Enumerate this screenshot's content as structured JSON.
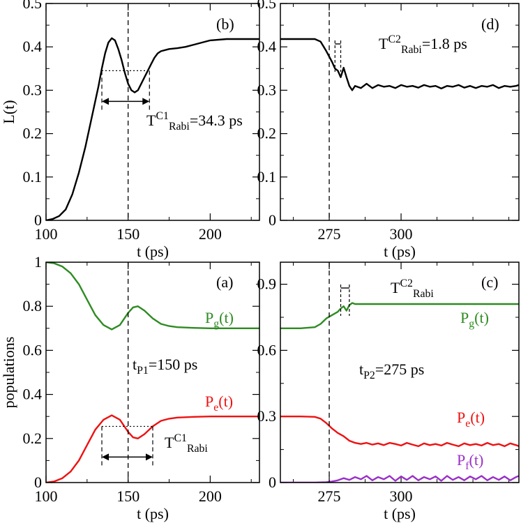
{
  "colors": {
    "black": "#000000",
    "green": "#2e8b22",
    "red": "#ee1111",
    "purple": "#9a2fc8"
  },
  "chart_data": [
    {
      "id": "b",
      "type": "line",
      "panel_label": "(b)",
      "xlabel": "t (ps)",
      "ylabel": "L(t)",
      "xlim": [
        100,
        230
      ],
      "ylim": [
        0,
        0.5
      ],
      "xticks": [
        100,
        150,
        200
      ],
      "xtick_labels": [
        "100",
        "150",
        "200"
      ],
      "yticks": [
        0,
        0.1,
        0.2,
        0.3,
        0.4,
        0.5
      ],
      "ytick_labels": [
        "0",
        "0.1",
        "0.2",
        "0.3",
        "0.4",
        "0.5"
      ],
      "series": [
        {
          "name": "L(t)",
          "color": "#000000",
          "x": [
            100,
            104,
            108,
            112,
            116,
            120,
            124,
            128,
            132,
            134,
            136,
            138,
            140,
            142,
            144,
            146,
            148,
            150,
            152,
            154,
            156,
            158,
            160,
            162,
            164,
            166,
            168,
            170,
            175,
            180,
            185,
            190,
            195,
            200,
            210,
            220,
            230
          ],
          "y": [
            0,
            0.003,
            0.01,
            0.025,
            0.06,
            0.11,
            0.17,
            0.24,
            0.31,
            0.35,
            0.385,
            0.41,
            0.42,
            0.415,
            0.395,
            0.37,
            0.34,
            0.315,
            0.3,
            0.295,
            0.3,
            0.315,
            0.33,
            0.345,
            0.36,
            0.375,
            0.385,
            0.39,
            0.395,
            0.397,
            0.4,
            0.405,
            0.41,
            0.415,
            0.418,
            0.418,
            0.418
          ]
        }
      ],
      "vline": 150,
      "annotation": {
        "text": "T",
        "sup": "C1",
        "sub": "Rabi",
        "value": "=34.3 ps",
        "x_start": 134,
        "x_end": 163,
        "level": 0.345
      }
    },
    {
      "id": "d",
      "type": "line",
      "panel_label": "(d)",
      "xlabel": "t (ps)",
      "ylabel": "",
      "xlim": [
        258,
        341
      ],
      "ylim": [
        0,
        0.5
      ],
      "xticks": [
        275,
        300
      ],
      "xtick_labels": [
        "275",
        "300"
      ],
      "yticks": [
        0,
        0.1,
        0.2,
        0.3,
        0.4,
        0.5
      ],
      "ytick_labels": [
        "0",
        "0.1",
        "0.2",
        "0.3",
        "0.4",
        "0.5"
      ],
      "series": [
        {
          "name": "L(t)",
          "color": "#000000",
          "x": [
            258,
            265,
            270,
            272,
            274,
            276,
            277,
            278,
            279,
            280,
            281,
            282,
            283,
            284,
            286,
            288,
            290,
            292,
            294,
            296,
            298,
            300,
            302,
            304,
            306,
            308,
            310,
            312,
            314,
            316,
            318,
            320,
            322,
            324,
            326,
            328,
            330,
            332,
            334,
            336,
            338,
            340,
            341
          ],
          "y": [
            0.418,
            0.418,
            0.418,
            0.412,
            0.39,
            0.365,
            0.35,
            0.345,
            0.33,
            0.352,
            0.33,
            0.31,
            0.3,
            0.31,
            0.305,
            0.315,
            0.305,
            0.312,
            0.308,
            0.31,
            0.305,
            0.312,
            0.308,
            0.31,
            0.306,
            0.312,
            0.308,
            0.31,
            0.304,
            0.31,
            0.308,
            0.312,
            0.306,
            0.31,
            0.305,
            0.31,
            0.308,
            0.312,
            0.305,
            0.31,
            0.308,
            0.31,
            0.312
          ]
        }
      ],
      "vline": 275,
      "annotation": {
        "text": "T",
        "sup": "C2",
        "sub": "Rabi",
        "value": "=1.8 ps",
        "x_start": 277,
        "x_end": 279
      }
    },
    {
      "id": "a",
      "type": "line",
      "panel_label": "(a)",
      "xlabel": "t (ps)",
      "ylabel": "populations",
      "xlim": [
        100,
        230
      ],
      "ylim": [
        0,
        1
      ],
      "xticks": [
        100,
        150,
        200
      ],
      "xtick_labels": [
        "100",
        "150",
        "200"
      ],
      "yticks": [
        0,
        0.2,
        0.4,
        0.6,
        0.8,
        1
      ],
      "ytick_labels": [
        "0",
        "0.2",
        "0.4",
        "0.6",
        "0.8",
        "1"
      ],
      "series": [
        {
          "name": "Pg(t)",
          "label_main": "P",
          "label_sub": "g",
          "label_tail": "(t)",
          "color": "#2e8b22",
          "x": [
            100,
            105,
            110,
            115,
            120,
            125,
            130,
            135,
            140,
            145,
            150,
            153,
            156,
            160,
            165,
            170,
            175,
            180,
            190,
            200,
            210,
            220,
            230
          ],
          "y": [
            1.0,
            0.995,
            0.98,
            0.95,
            0.9,
            0.83,
            0.76,
            0.715,
            0.695,
            0.715,
            0.77,
            0.795,
            0.8,
            0.78,
            0.745,
            0.72,
            0.71,
            0.705,
            0.702,
            0.7,
            0.7,
            0.7,
            0.7
          ]
        },
        {
          "name": "Pe(t)",
          "label_main": "P",
          "label_sub": "e",
          "label_tail": "(t)",
          "color": "#ee1111",
          "x": [
            100,
            105,
            110,
            115,
            120,
            125,
            130,
            135,
            140,
            145,
            150,
            153,
            156,
            160,
            165,
            170,
            175,
            180,
            190,
            200,
            210,
            220,
            230
          ],
          "y": [
            0.0,
            0.005,
            0.02,
            0.05,
            0.1,
            0.17,
            0.24,
            0.285,
            0.305,
            0.285,
            0.23,
            0.205,
            0.2,
            0.22,
            0.255,
            0.28,
            0.29,
            0.295,
            0.298,
            0.3,
            0.3,
            0.3,
            0.3
          ]
        }
      ],
      "vline": 150,
      "vline_label": {
        "main": "t",
        "sub": "P1",
        "value": "=150 ps"
      },
      "annotation": {
        "text": "T",
        "sup": "C1",
        "sub": "Rabi",
        "value": "",
        "x_start": 134,
        "x_end": 165,
        "level": 0.255
      }
    },
    {
      "id": "c",
      "type": "line",
      "panel_label": "(c)",
      "xlabel": "t (ps)",
      "ylabel": "",
      "xlim": [
        258,
        341
      ],
      "ylim": [
        0,
        1
      ],
      "xticks": [
        275,
        300
      ],
      "xtick_labels": [
        "275",
        "300"
      ],
      "yticks": [
        0,
        0.3,
        0.6,
        0.9
      ],
      "ytick_labels": [
        "0",
        "0.3",
        "0.6",
        "0.9"
      ],
      "series": [
        {
          "name": "Pg(t)",
          "label_main": "P",
          "label_sub": "g",
          "label_tail": "(t)",
          "color": "#2e8b22",
          "x": [
            258,
            265,
            270,
            272,
            274,
            276,
            278,
            279,
            280,
            281,
            282,
            283,
            284,
            286,
            290,
            300,
            310,
            320,
            330,
            341
          ],
          "y": [
            0.7,
            0.7,
            0.705,
            0.72,
            0.745,
            0.76,
            0.775,
            0.79,
            0.8,
            0.78,
            0.805,
            0.815,
            0.81,
            0.81,
            0.81,
            0.81,
            0.81,
            0.81,
            0.81,
            0.81
          ]
        },
        {
          "name": "Pe(t)",
          "label_main": "P",
          "label_sub": "e",
          "label_tail": "(t)",
          "color": "#ee1111",
          "x": [
            258,
            265,
            270,
            272,
            274,
            276,
            278,
            280,
            282,
            284,
            286,
            288,
            290,
            292,
            294,
            296,
            298,
            300,
            302,
            304,
            306,
            308,
            310,
            312,
            314,
            316,
            318,
            320,
            322,
            324,
            326,
            328,
            330,
            332,
            334,
            336,
            338,
            340,
            341
          ],
          "y": [
            0.3,
            0.3,
            0.298,
            0.29,
            0.27,
            0.245,
            0.225,
            0.21,
            0.19,
            0.18,
            0.175,
            0.18,
            0.172,
            0.178,
            0.17,
            0.18,
            0.175,
            0.168,
            0.18,
            0.172,
            0.165,
            0.178,
            0.17,
            0.175,
            0.168,
            0.18,
            0.172,
            0.165,
            0.178,
            0.17,
            0.175,
            0.168,
            0.18,
            0.17,
            0.175,
            0.165,
            0.178,
            0.17,
            0.165
          ]
        },
        {
          "name": "Pf(t)",
          "label_main": "P",
          "label_sub": "f",
          "label_tail": "(t)",
          "color": "#9a2fc8",
          "x": [
            258,
            270,
            274,
            276,
            278,
            280,
            282,
            284,
            286,
            288,
            290,
            292,
            294,
            296,
            298,
            300,
            302,
            304,
            306,
            308,
            310,
            312,
            314,
            316,
            318,
            320,
            322,
            324,
            326,
            328,
            330,
            332,
            334,
            336,
            338,
            340,
            341
          ],
          "y": [
            0,
            0,
            0.002,
            0.005,
            0.01,
            0.02,
            0.012,
            0.025,
            0.015,
            0.03,
            0.01,
            0.025,
            0.015,
            0.03,
            0.008,
            0.028,
            0.012,
            0.03,
            0.01,
            0.025,
            0.015,
            0.028,
            0.008,
            0.03,
            0.012,
            0.025,
            0.01,
            0.028,
            0.015,
            0.03,
            0.01,
            0.025,
            0.012,
            0.028,
            0.01,
            0.025,
            0.03
          ]
        }
      ],
      "vline": 275,
      "vline_label": {
        "main": "t",
        "sub": "P2",
        "value": "=275 ps"
      },
      "annotation": {
        "text": "T",
        "sup": "C2",
        "sub": "Rabi",
        "value": "",
        "x_start": 279,
        "x_end": 282
      }
    }
  ]
}
